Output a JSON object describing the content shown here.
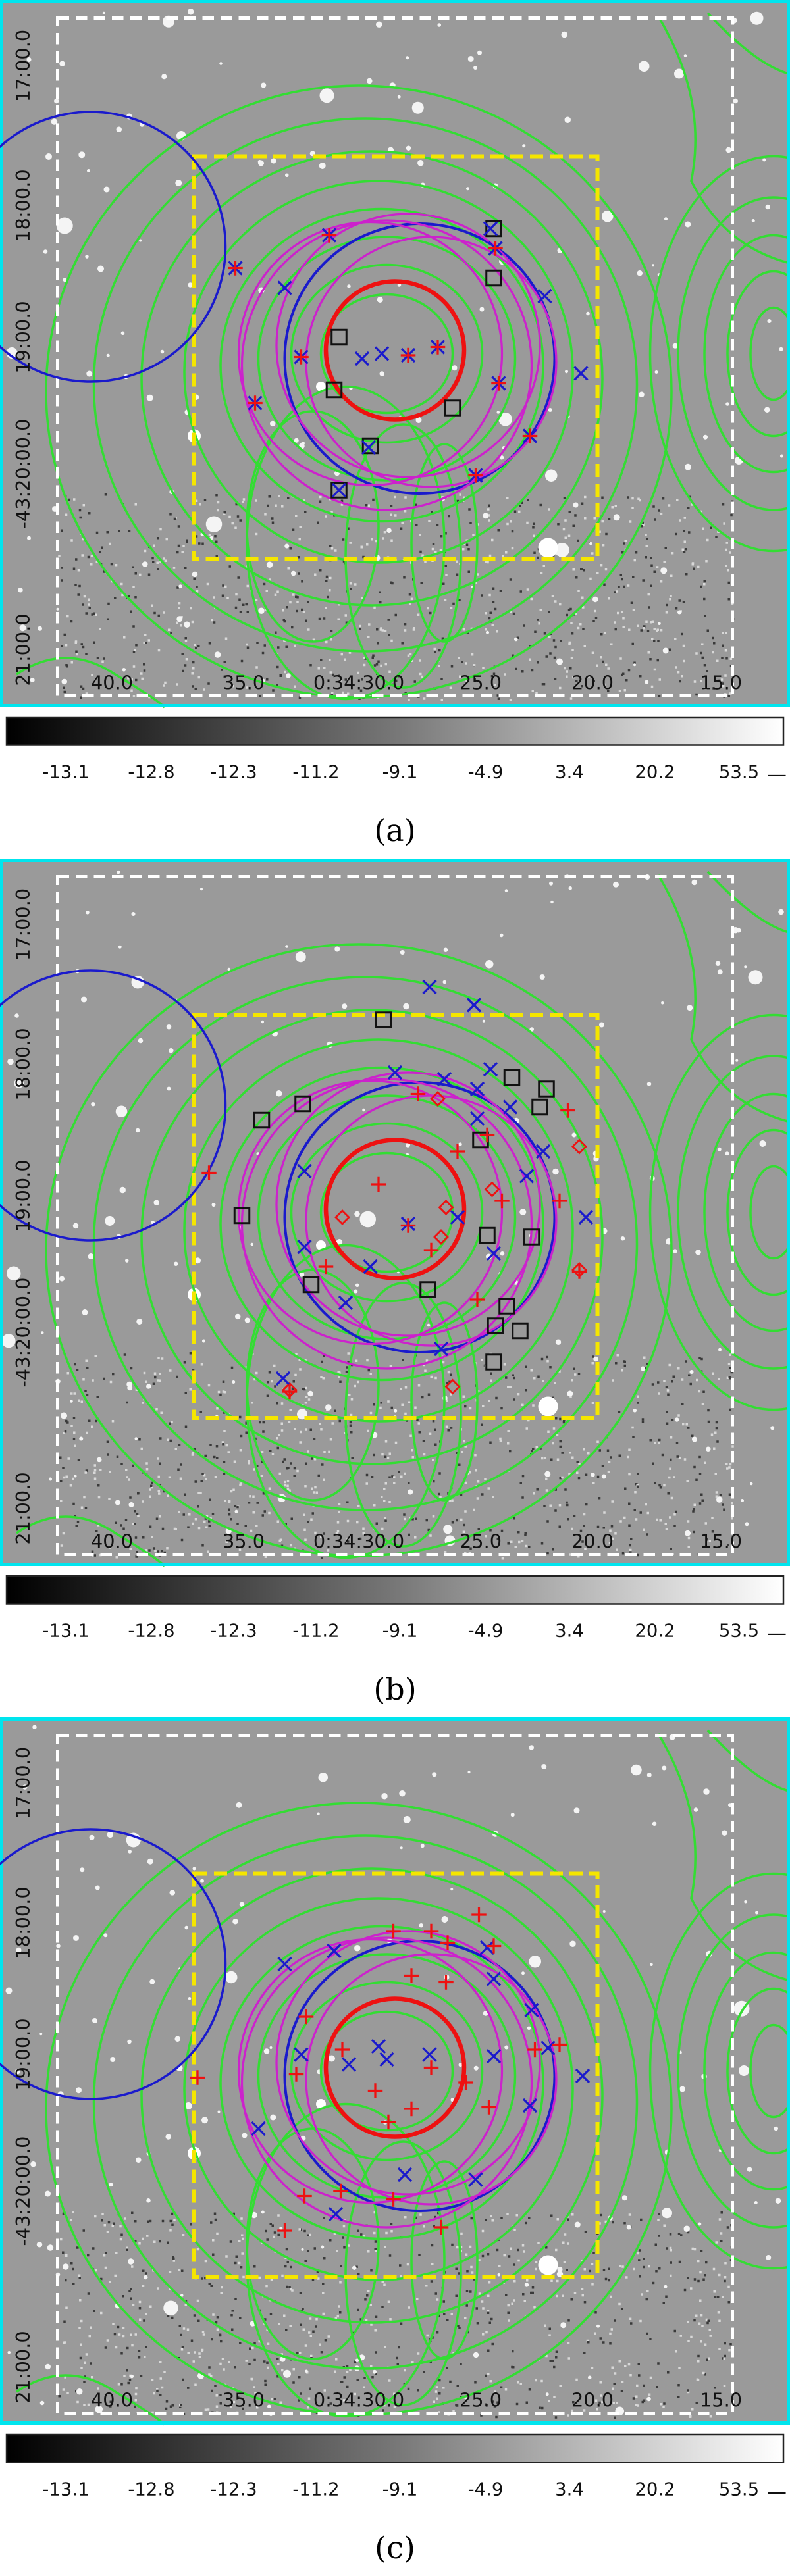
{
  "colors": {
    "frame": "#00e5ee",
    "contour": "#33dd33",
    "circle_blue": "#1a1acc",
    "circle_red": "#ee1111",
    "circle_magenta": "#cc22cc",
    "box_yellow": "#f5e600",
    "box_white": "#ffffff",
    "sky": "#9a9a9a"
  },
  "axis_labels": {
    "ra": [
      "40.0",
      "35.0",
      "0:34:30.0",
      "25.0",
      "20.0",
      "15.0"
    ],
    "dec": [
      "17:00.0",
      "18:00.0",
      "19:00.0",
      "-43:20:00.0",
      "21:00.0"
    ]
  },
  "colorbar": {
    "ticks": [
      "-13.1",
      "-12.8",
      "-12.3",
      "-11.2",
      "-9.1",
      "-4.9",
      "3.4",
      "20.2",
      "53.5"
    ],
    "end_mark": "—"
  },
  "panels": [
    {
      "id": "a",
      "caption": "(a)"
    },
    {
      "id": "b",
      "caption": "(b)"
    },
    {
      "id": "c",
      "caption": "(c)"
    }
  ],
  "markers": {
    "a": {
      "blue_x": [
        [
          143,
          163
        ],
        [
          200,
          143
        ],
        [
          173,
          175
        ],
        [
          183,
          217
        ],
        [
          220,
          218
        ],
        [
          232,
          215
        ],
        [
          248,
          216
        ],
        [
          266,
          211
        ],
        [
          301,
          151
        ],
        [
          303,
          233
        ],
        [
          331,
          180
        ],
        [
          353,
          227
        ],
        [
          322,
          265
        ],
        [
          289,
          289
        ],
        [
          155,
          245
        ],
        [
          224,
          272
        ],
        [
          206,
          298
        ],
        [
          298,
          139
        ]
      ],
      "red_plus": [
        [
          143,
          163
        ],
        [
          200,
          143
        ],
        [
          183,
          217
        ],
        [
          248,
          216
        ],
        [
          266,
          211
        ],
        [
          303,
          233
        ],
        [
          322,
          265
        ],
        [
          289,
          289
        ],
        [
          155,
          245
        ],
        [
          301,
          151
        ]
      ],
      "squares": [
        [
          300,
          139
        ],
        [
          300,
          169
        ],
        [
          206,
          205
        ],
        [
          203,
          237
        ],
        [
          275,
          248
        ],
        [
          225,
          271
        ],
        [
          206,
          298
        ]
      ]
    },
    "b": {
      "blue_x": [
        [
          261,
          600
        ],
        [
          288,
          611
        ],
        [
          298,
          650
        ],
        [
          240,
          652
        ],
        [
          270,
          656
        ],
        [
          310,
          673
        ],
        [
          290,
          680
        ],
        [
          330,
          700
        ],
        [
          185,
          712
        ],
        [
          185,
          758
        ],
        [
          225,
          770
        ],
        [
          248,
          744
        ],
        [
          278,
          740
        ],
        [
          300,
          762
        ],
        [
          320,
          715
        ],
        [
          356,
          740
        ],
        [
          210,
          792
        ],
        [
          268,
          820
        ],
        [
          172,
          838
        ],
        [
          290,
          662
        ]
      ],
      "red_plus": [
        [
          127,
          713
        ],
        [
          176,
          846
        ],
        [
          254,
          665
        ],
        [
          296,
          690
        ],
        [
          345,
          675
        ],
        [
          340,
          730
        ],
        [
          248,
          745
        ],
        [
          278,
          700
        ],
        [
          198,
          770
        ],
        [
          262,
          760
        ],
        [
          305,
          730
        ],
        [
          352,
          773
        ],
        [
          290,
          790
        ],
        [
          230,
          720
        ]
      ],
      "squares": [
        [
          233,
          620
        ],
        [
          311,
          655
        ],
        [
          332,
          662
        ],
        [
          159,
          681
        ],
        [
          184,
          671
        ],
        [
          292,
          693
        ],
        [
          328,
          673
        ],
        [
          147,
          739
        ],
        [
          323,
          752
        ],
        [
          296,
          751
        ],
        [
          189,
          781
        ],
        [
          260,
          784
        ],
        [
          308,
          794
        ],
        [
          301,
          806
        ],
        [
          316,
          809
        ],
        [
          300,
          828
        ]
      ],
      "diamonds": [
        [
          266,
          668
        ],
        [
          352,
          697
        ],
        [
          208,
          740
        ],
        [
          271,
          734
        ],
        [
          299,
          723
        ],
        [
          268,
          752
        ],
        [
          352,
          772
        ],
        [
          176,
          845
        ],
        [
          275,
          843
        ]
      ]
    },
    "c": {
      "blue_x": [
        [
          173,
          1194
        ],
        [
          203,
          1186
        ],
        [
          296,
          1184
        ],
        [
          300,
          1203
        ],
        [
          323,
          1222
        ],
        [
          333,
          1245
        ],
        [
          183,
          1249
        ],
        [
          212,
          1255
        ],
        [
          235,
          1252
        ],
        [
          261,
          1249
        ],
        [
          300,
          1250
        ],
        [
          322,
          1280
        ],
        [
          289,
          1325
        ],
        [
          246,
          1322
        ],
        [
          204,
          1346
        ],
        [
          157,
          1294
        ],
        [
          354,
          1262
        ],
        [
          230,
          1244
        ]
      ],
      "red_plus": [
        [
          239,
          1174
        ],
        [
          262,
          1174
        ],
        [
          291,
          1164
        ],
        [
          272,
          1181
        ],
        [
          300,
          1183
        ],
        [
          250,
          1201
        ],
        [
          271,
          1205
        ],
        [
          186,
          1226
        ],
        [
          180,
          1261
        ],
        [
          208,
          1246
        ],
        [
          228,
          1271
        ],
        [
          236,
          1290
        ],
        [
          250,
          1282
        ],
        [
          262,
          1257
        ],
        [
          283,
          1266
        ],
        [
          297,
          1281
        ],
        [
          325,
          1246
        ],
        [
          340,
          1243
        ],
        [
          120,
          1263
        ],
        [
          185,
          1335
        ],
        [
          207,
          1332
        ],
        [
          239,
          1337
        ],
        [
          173,
          1356
        ],
        [
          268,
          1354
        ]
      ]
    }
  }
}
